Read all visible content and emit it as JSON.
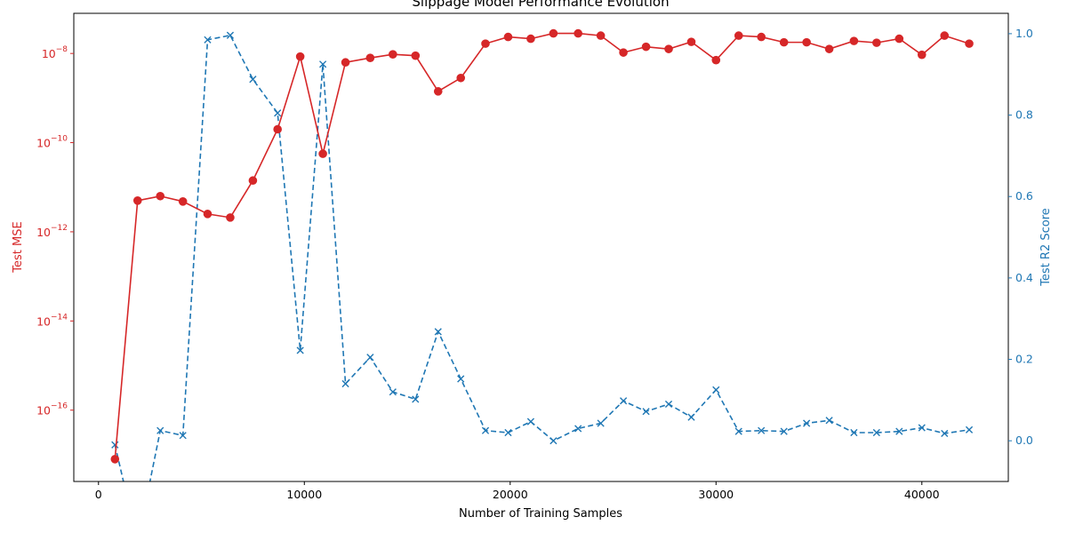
{
  "chart_data": {
    "type": "line",
    "title": "Slippage Model Performance Evolution",
    "xlabel": "Number of Training Samples",
    "ylabel_left": "Test MSE",
    "ylabel_right": "Test R2 Score",
    "xlim": [
      -1200,
      44200
    ],
    "ylim_left_log10": [
      -17.6,
      -7.1
    ],
    "ylim_right": [
      -0.1,
      1.05
    ],
    "left_scale": "log",
    "grid": false,
    "legend": "none",
    "colors": {
      "mse": "#d62728",
      "r2": "#1f77b4",
      "axis": "#000000"
    },
    "x_ticks": [
      {
        "value": 0,
        "label": "0"
      },
      {
        "value": 10000,
        "label": "10000"
      },
      {
        "value": 20000,
        "label": "20000"
      },
      {
        "value": 30000,
        "label": "30000"
      },
      {
        "value": 40000,
        "label": "40000"
      }
    ],
    "y_left_ticks": [
      {
        "exp": -16,
        "base": "10",
        "sup": "−16"
      },
      {
        "exp": -14,
        "base": "10",
        "sup": "−14"
      },
      {
        "exp": -12,
        "base": "10",
        "sup": "−12"
      },
      {
        "exp": -10,
        "base": "10",
        "sup": "−10"
      },
      {
        "exp": -8,
        "base": "10",
        "sup": "−8"
      }
    ],
    "y_right_ticks": [
      {
        "value": 0.0,
        "label": "0.0"
      },
      {
        "value": 0.2,
        "label": "0.2"
      },
      {
        "value": 0.4,
        "label": "0.4"
      },
      {
        "value": 0.6,
        "label": "0.6"
      },
      {
        "value": 0.8,
        "label": "0.8"
      },
      {
        "value": 1.0,
        "label": "1.0"
      }
    ],
    "x": [
      800,
      1900,
      3000,
      4100,
      5300,
      6400,
      7500,
      8700,
      9800,
      10900,
      12000,
      13200,
      14300,
      15400,
      16500,
      17600,
      18800,
      19900,
      21000,
      22100,
      23300,
      24400,
      25500,
      26600,
      27700,
      28800,
      30000,
      31100,
      32200,
      33300,
      34400,
      35500,
      36700,
      37800,
      38900,
      40000,
      41100,
      42300
    ],
    "series": [
      {
        "name": "Test MSE",
        "axis": "left",
        "marker": "circle",
        "linestyle": "solid",
        "log10_values": [
          -17.1,
          -11.3,
          -11.2,
          -11.32,
          -11.6,
          -11.68,
          -10.85,
          -9.7,
          -8.07,
          -10.25,
          -8.2,
          -8.1,
          -8.02,
          -8.05,
          -8.85,
          -8.55,
          -7.78,
          -7.63,
          -7.67,
          -7.55,
          -7.55,
          -7.6,
          -7.98,
          -7.85,
          -7.9,
          -7.74,
          -8.15,
          -7.6,
          -7.63,
          -7.75,
          -7.75,
          -7.9,
          -7.72,
          -7.76,
          -7.67,
          -8.03,
          -7.6,
          -7.78
        ]
      },
      {
        "name": "Test R2 Score",
        "axis": "right",
        "marker": "x",
        "linestyle": "dashed",
        "values": [
          -0.01,
          -0.25,
          0.025,
          0.013,
          0.985,
          0.996,
          0.888,
          0.805,
          0.222,
          0.925,
          0.14,
          0.205,
          0.12,
          0.102,
          0.268,
          0.152,
          0.025,
          0.02,
          0.047,
          0.0,
          0.03,
          0.043,
          0.098,
          0.072,
          0.09,
          0.058,
          0.125,
          0.023,
          0.025,
          0.023,
          0.043,
          0.05,
          0.02,
          0.02,
          0.023,
          0.032,
          0.018,
          0.027
        ]
      }
    ]
  }
}
